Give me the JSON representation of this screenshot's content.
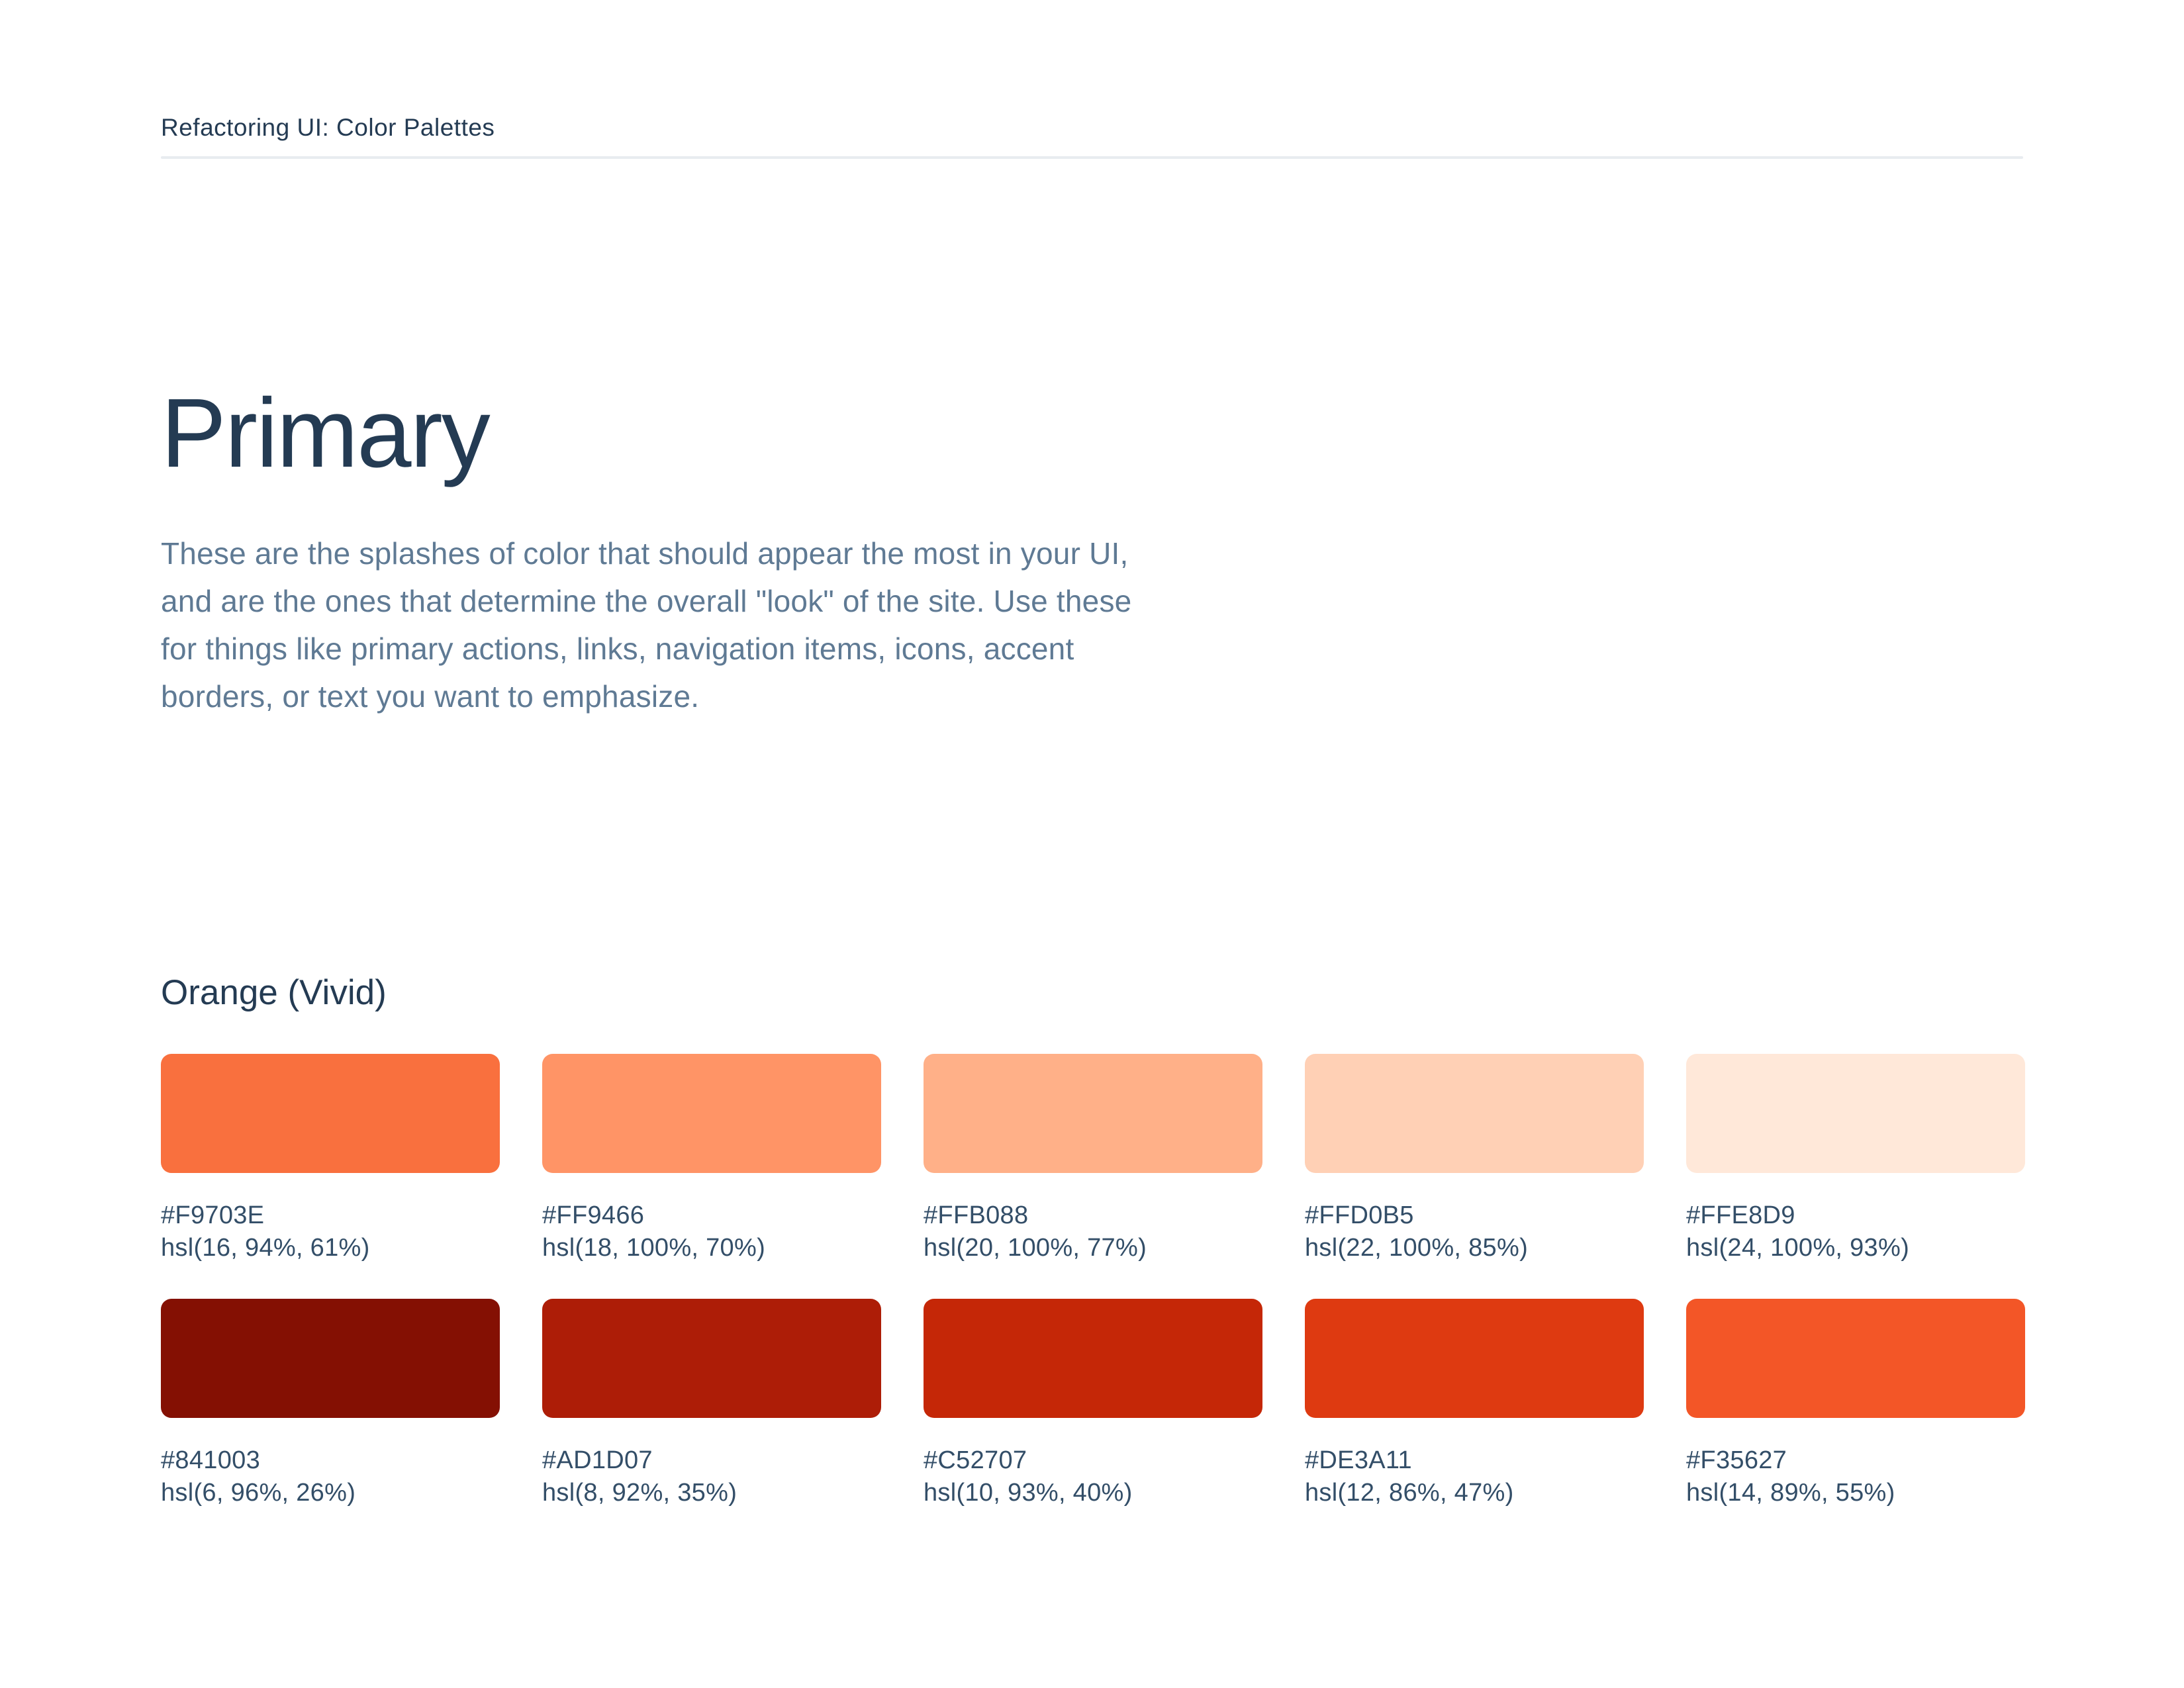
{
  "header": {
    "title": "Refactoring UI: Color Palettes"
  },
  "intro": {
    "heading": "Primary",
    "lines": [
      "These are the splashes of color that should appear the most in your UI,",
      "and are the ones that determine the overall \"look\" of the site. Use these",
      "for things like primary actions, links, navigation items, icons, accent",
      "borders, or text you want to emphasize."
    ]
  },
  "palette": {
    "name": "Orange (Vivid)",
    "rows": [
      [
        {
          "hex": "#F9703E",
          "hsl": "hsl(16, 94%, 61%)"
        },
        {
          "hex": "#FF9466",
          "hsl": "hsl(18, 100%, 70%)"
        },
        {
          "hex": "#FFB088",
          "hsl": "hsl(20, 100%, 77%)"
        },
        {
          "hex": "#FFD0B5",
          "hsl": "hsl(22, 100%, 85%)"
        },
        {
          "hex": "#FFE8D9",
          "hsl": "hsl(24, 100%, 93%)"
        }
      ],
      [
        {
          "hex": "#841003",
          "hsl": "hsl(6, 96%, 26%)"
        },
        {
          "hex": "#AD1D07",
          "hsl": "hsl(8, 92%, 35%)"
        },
        {
          "hex": "#C52707",
          "hsl": "hsl(10, 93%, 40%)"
        },
        {
          "hex": "#DE3A11",
          "hsl": "hsl(12, 86%, 47%)"
        },
        {
          "hex": "#F35627",
          "hsl": "hsl(14, 89%, 55%)"
        }
      ]
    ]
  },
  "theme": {
    "heading_color": "#243B53",
    "body_color": "#5F7A94",
    "label_color": "#334E68",
    "divider_color": "#E8ECF0",
    "page_background": "#FFFFFF"
  }
}
